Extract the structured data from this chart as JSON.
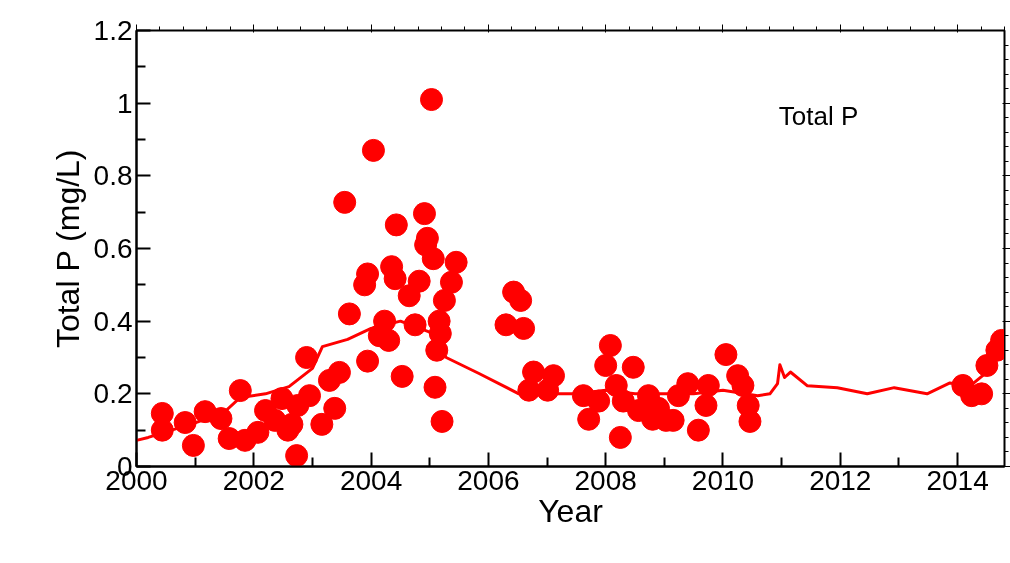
{
  "chart_data": {
    "type": "scatter",
    "xlabel": "Year",
    "ylabel": "Total P (mg/L)",
    "annotations": [
      "Total P"
    ],
    "xlim": [
      2000,
      2014.8
    ],
    "ylim": [
      0,
      1.2
    ],
    "xticks": [
      2000,
      {
        "value": 2001,
        "label": null
      },
      2002,
      {
        "value": 2003,
        "label": null
      },
      2004,
      {
        "value": 2005,
        "label": null
      },
      2006,
      {
        "value": 2007,
        "label": null
      },
      2008,
      {
        "value": 2009,
        "label": null
      },
      2010,
      {
        "value": 2011,
        "label": null
      },
      2012,
      {
        "value": 2013,
        "label": null
      },
      2014
    ],
    "yticks": [
      0,
      {
        "value": 0.1,
        "label": null
      },
      0.2,
      {
        "value": 0.3,
        "label": null
      },
      0.4,
      {
        "value": 0.5,
        "label": null
      },
      0.6,
      {
        "value": 0.7,
        "label": null
      },
      0.8,
      {
        "value": 0.9,
        "label": null
      },
      1,
      {
        "value": 1.1,
        "label": null
      },
      1.2
    ],
    "grid": false,
    "series": [
      {
        "type": "line",
        "marker": "none",
        "line_style": "solid",
        "color": "#ff0000",
        "x": [
          2000,
          2000.2,
          2000.6,
          2001,
          2001.5,
          2001.77,
          2002.2,
          2002.6,
          2003,
          2003.17,
          2003.6,
          2004,
          2004.5,
          2005,
          2005.28,
          2005.84,
          2006.52,
          2007,
          2007.5,
          2008,
          2008.5,
          2009,
          2009.5,
          2010,
          2010.59,
          2010.8,
          2010.93,
          2010.97,
          2011.05,
          2011.15,
          2011.44,
          2011.95,
          2012.46,
          2012.92,
          2013.48,
          2013.87,
          2014.2,
          2014.5,
          2014.8
        ],
        "values": [
          0.072,
          0.08,
          0.1,
          0.12,
          0.15,
          0.19,
          0.2,
          0.22,
          0.27,
          0.33,
          0.35,
          0.38,
          0.4,
          0.37,
          0.3,
          0.256,
          0.2,
          0.2,
          0.2,
          0.21,
          0.2,
          0.2,
          0.2,
          0.21,
          0.195,
          0.2,
          0.228,
          0.28,
          0.245,
          0.26,
          0.222,
          0.217,
          0.2,
          0.217,
          0.2,
          0.23,
          0.22,
          0.26,
          0.33
        ]
      },
      {
        "marker": "circle",
        "color": "#ff0000",
        "x": [
          2000.44,
          2000.44,
          2000.83,
          2000.97,
          2001.17,
          2001.44,
          2001.58,
          2001.77,
          2001.85,
          2002.07,
          2002.2,
          2002.36,
          2002.48,
          2002.58,
          2002.73,
          2002.65,
          2002.75,
          2002.9,
          2002.95,
          2003.16,
          2003.29,
          2003.38,
          2003.46,
          2003.55,
          2003.63,
          2003.94,
          2004.04,
          2004.14,
          2004.23,
          2003.89,
          2003.94,
          2004.41,
          2004.43,
          2004.53,
          2004.3,
          2004.35,
          2004.65,
          2004.75,
          2004.82,
          2004.91,
          2004.96,
          2005.03,
          2005.09,
          2005.12,
          2005.18,
          2005.06,
          2005.21,
          2005.25,
          2005.37,
          2005.45,
          2005.16,
          2004.93,
          2006.3,
          2006.43,
          2006.55,
          2006.6,
          2006.69,
          2006.77,
          2007.01,
          2007.11,
          2007.62,
          2007.71,
          2007.88,
          2008.0,
          2008.08,
          2008.18,
          2008.25,
          2008.47,
          2008.56,
          2008.73,
          2008.9,
          2009.03,
          2009.24,
          2009.4,
          2009.58,
          2009.71,
          2009.75,
          2010.05,
          2010.25,
          2010.34,
          2010.43,
          2010.46,
          2009.15,
          2008.3,
          2008.8,
          2014.09,
          2014.24,
          2014.41,
          2014.5,
          2014.67,
          2014.75
        ],
        "values": [
          0.146,
          0.1,
          0.121,
          0.058,
          0.151,
          0.132,
          0.077,
          0.209,
          0.072,
          0.094,
          0.154,
          0.127,
          0.187,
          0.1,
          0.03,
          0.116,
          0.168,
          0.3,
          0.195,
          0.116,
          0.237,
          0.16,
          0.259,
          0.727,
          0.42,
          0.29,
          0.87,
          0.36,
          0.4,
          0.5,
          0.53,
          0.517,
          0.665,
          0.248,
          0.347,
          0.55,
          0.47,
          0.39,
          0.51,
          0.696,
          0.628,
          1.01,
          0.218,
          0.32,
          0.366,
          0.572,
          0.124,
          0.457,
          0.507,
          0.562,
          0.4,
          0.61,
          0.39,
          0.48,
          0.457,
          0.38,
          0.21,
          0.26,
          0.21,
          0.25,
          0.195,
          0.13,
          0.18,
          0.278,
          0.333,
          0.223,
          0.08,
          0.273,
          0.154,
          0.195,
          0.16,
          0.127,
          0.195,
          0.228,
          0.1,
          0.168,
          0.223,
          0.308,
          0.25,
          0.223,
          0.168,
          0.124,
          0.127,
          0.18,
          0.13,
          0.223,
          0.195,
          0.2,
          0.278,
          0.32,
          0.347
        ]
      }
    ]
  }
}
